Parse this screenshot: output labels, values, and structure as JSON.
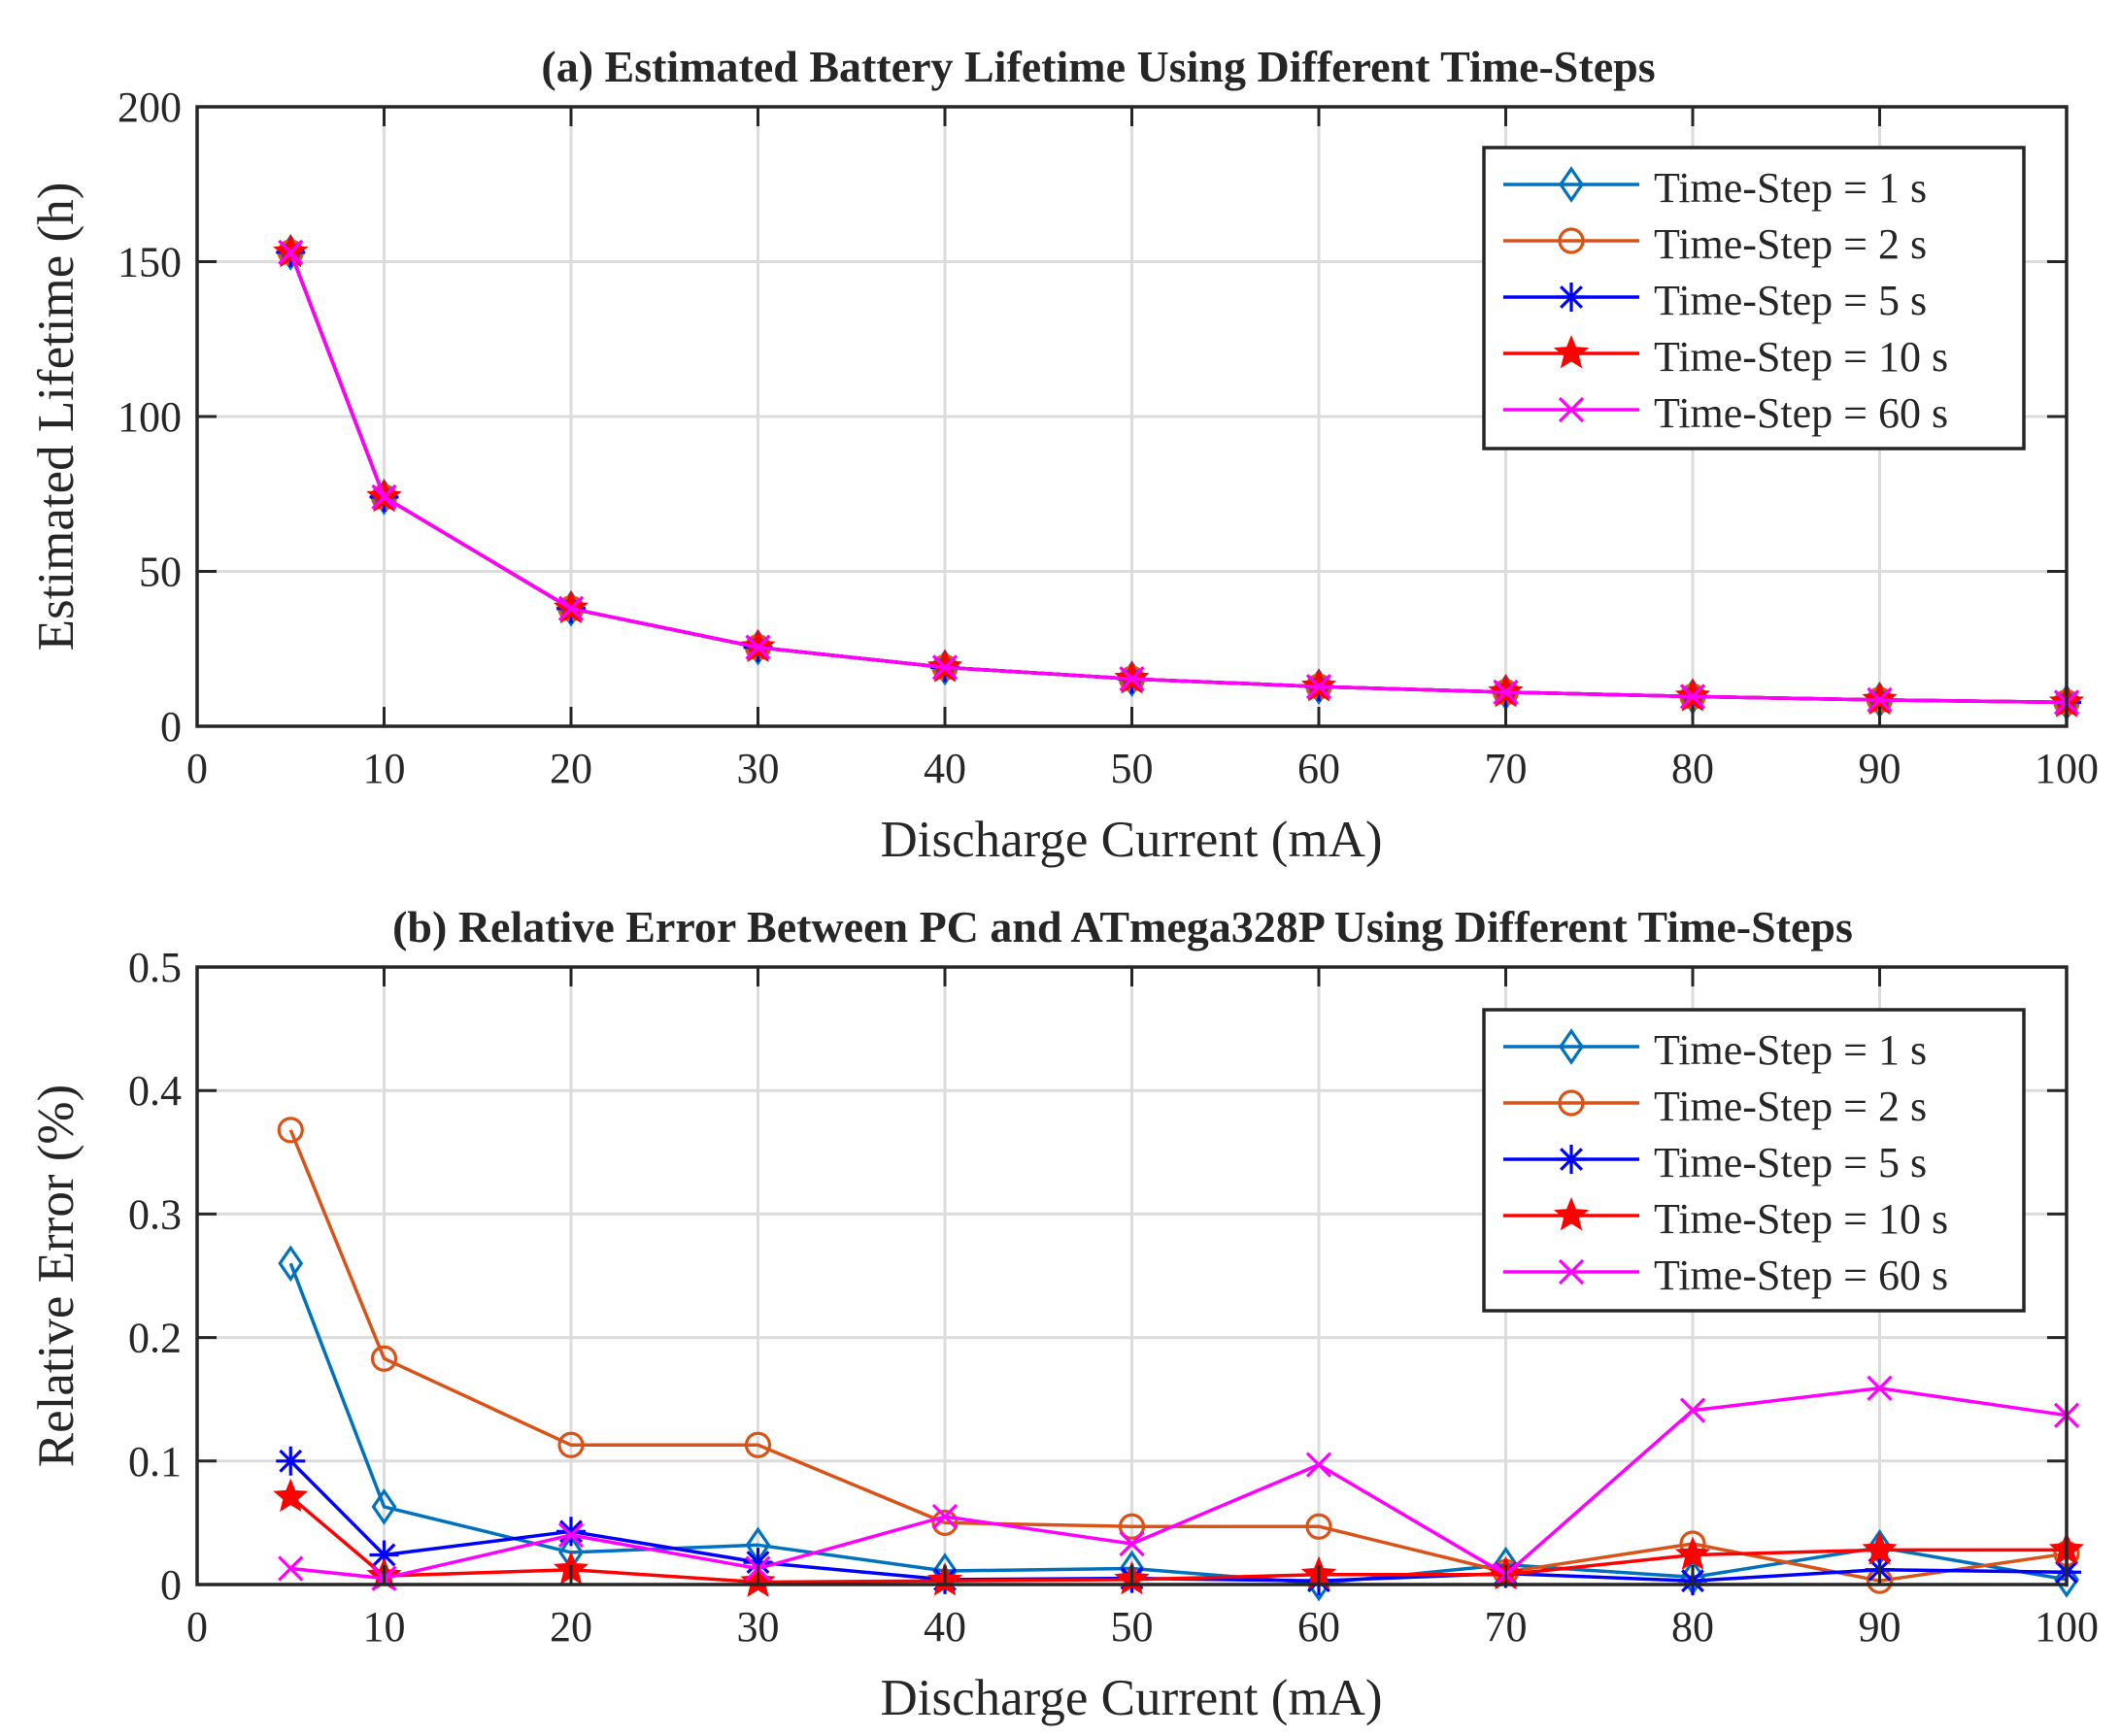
{
  "chart_data": [
    {
      "type": "line",
      "id": "a",
      "title": "(a) Estimated Battery Lifetime Using Different Time-Steps",
      "xlabel": "Discharge Current (mA)",
      "ylabel": "Estimated Lifetime (h)",
      "xlim": [
        0,
        100
      ],
      "ylim": [
        0,
        200
      ],
      "xticks": [
        0,
        10,
        20,
        30,
        40,
        50,
        60,
        70,
        80,
        90,
        100
      ],
      "yticks": [
        0,
        50,
        100,
        150,
        200
      ],
      "xtick_labels": [
        "0",
        "10",
        "20",
        "30",
        "40",
        "50",
        "60",
        "70",
        "80",
        "90",
        "100"
      ],
      "ytick_labels": [
        "0",
        "50",
        "100",
        "150",
        "200"
      ],
      "grid": true,
      "legend_position": "top-right",
      "x": [
        5,
        10,
        20,
        30,
        40,
        50,
        60,
        70,
        80,
        90,
        100
      ],
      "series": [
        {
          "name": "Time-Step = 1 s",
          "color": "#0072BD",
          "marker": "diamond",
          "values": [
            153,
            74,
            38,
            25.5,
            19,
            15.3,
            12.8,
            11,
            9.6,
            8.5,
            7.7
          ]
        },
        {
          "name": "Time-Step = 2 s",
          "color": "#D95319",
          "marker": "circle",
          "values": [
            153,
            74,
            38,
            25.5,
            19,
            15.3,
            12.8,
            11,
            9.6,
            8.5,
            7.7
          ]
        },
        {
          "name": "Time-Step = 5 s",
          "color": "#0000FF",
          "marker": "asterisk",
          "values": [
            153,
            74,
            38,
            25.5,
            19,
            15.3,
            12.8,
            11,
            9.6,
            8.5,
            7.7
          ]
        },
        {
          "name": "Time-Step = 10 s",
          "color": "#FF0000",
          "marker": "star",
          "values": [
            153,
            74,
            38,
            25.5,
            19,
            15.3,
            12.8,
            11,
            9.6,
            8.5,
            7.7
          ]
        },
        {
          "name": "Time-Step = 60 s",
          "color": "#FF00FF",
          "marker": "x",
          "values": [
            153,
            74,
            38,
            25.5,
            19,
            15.3,
            12.8,
            11,
            9.6,
            8.5,
            7.7
          ]
        }
      ]
    },
    {
      "type": "line",
      "id": "b",
      "title": "(b) Relative Error Between PC and ATmega328P Using Different Time-Steps",
      "xlabel": "Discharge Current (mA)",
      "ylabel": "Relative Error (%)",
      "xlim": [
        0,
        100
      ],
      "ylim": [
        0,
        0.5
      ],
      "xticks": [
        0,
        10,
        20,
        30,
        40,
        50,
        60,
        70,
        80,
        90,
        100
      ],
      "yticks": [
        0,
        0.1,
        0.2,
        0.3,
        0.4,
        0.5
      ],
      "xtick_labels": [
        "0",
        "10",
        "20",
        "30",
        "40",
        "50",
        "60",
        "70",
        "80",
        "90",
        "100"
      ],
      "ytick_labels": [
        "0",
        "0.1",
        "0.2",
        "0.3",
        "0.4",
        "0.5"
      ],
      "grid": true,
      "legend_position": "top-right",
      "x": [
        5,
        10,
        20,
        30,
        40,
        50,
        60,
        70,
        80,
        90,
        100
      ],
      "series": [
        {
          "name": "Time-Step = 1 s",
          "color": "#0072BD",
          "marker": "diamond",
          "values": [
            0.26,
            0.063,
            0.026,
            0.032,
            0.011,
            0.013,
            0.001,
            0.016,
            0.006,
            0.03,
            0.004
          ]
        },
        {
          "name": "Time-Step = 2 s",
          "color": "#D95319",
          "marker": "circle",
          "values": [
            0.368,
            0.183,
            0.113,
            0.113,
            0.05,
            0.047,
            0.047,
            0.01,
            0.033,
            0.003,
            0.025
          ]
        },
        {
          "name": "Time-Step = 5 s",
          "color": "#0000FF",
          "marker": "asterisk",
          "values": [
            0.1,
            0.024,
            0.043,
            0.018,
            0.004,
            0.005,
            0.003,
            0.009,
            0.003,
            0.012,
            0.01
          ]
        },
        {
          "name": "Time-Step = 10 s",
          "color": "#FF0000",
          "marker": "star",
          "values": [
            0.071,
            0.007,
            0.012,
            0.002,
            0.003,
            0.004,
            0.008,
            0.008,
            0.024,
            0.028,
            0.028
          ]
        },
        {
          "name": "Time-Step = 60 s",
          "color": "#FF00FF",
          "marker": "x",
          "values": [
            0.013,
            0.005,
            0.04,
            0.013,
            0.055,
            0.033,
            0.097,
            0.008,
            0.141,
            0.159,
            0.137
          ]
        }
      ]
    }
  ]
}
